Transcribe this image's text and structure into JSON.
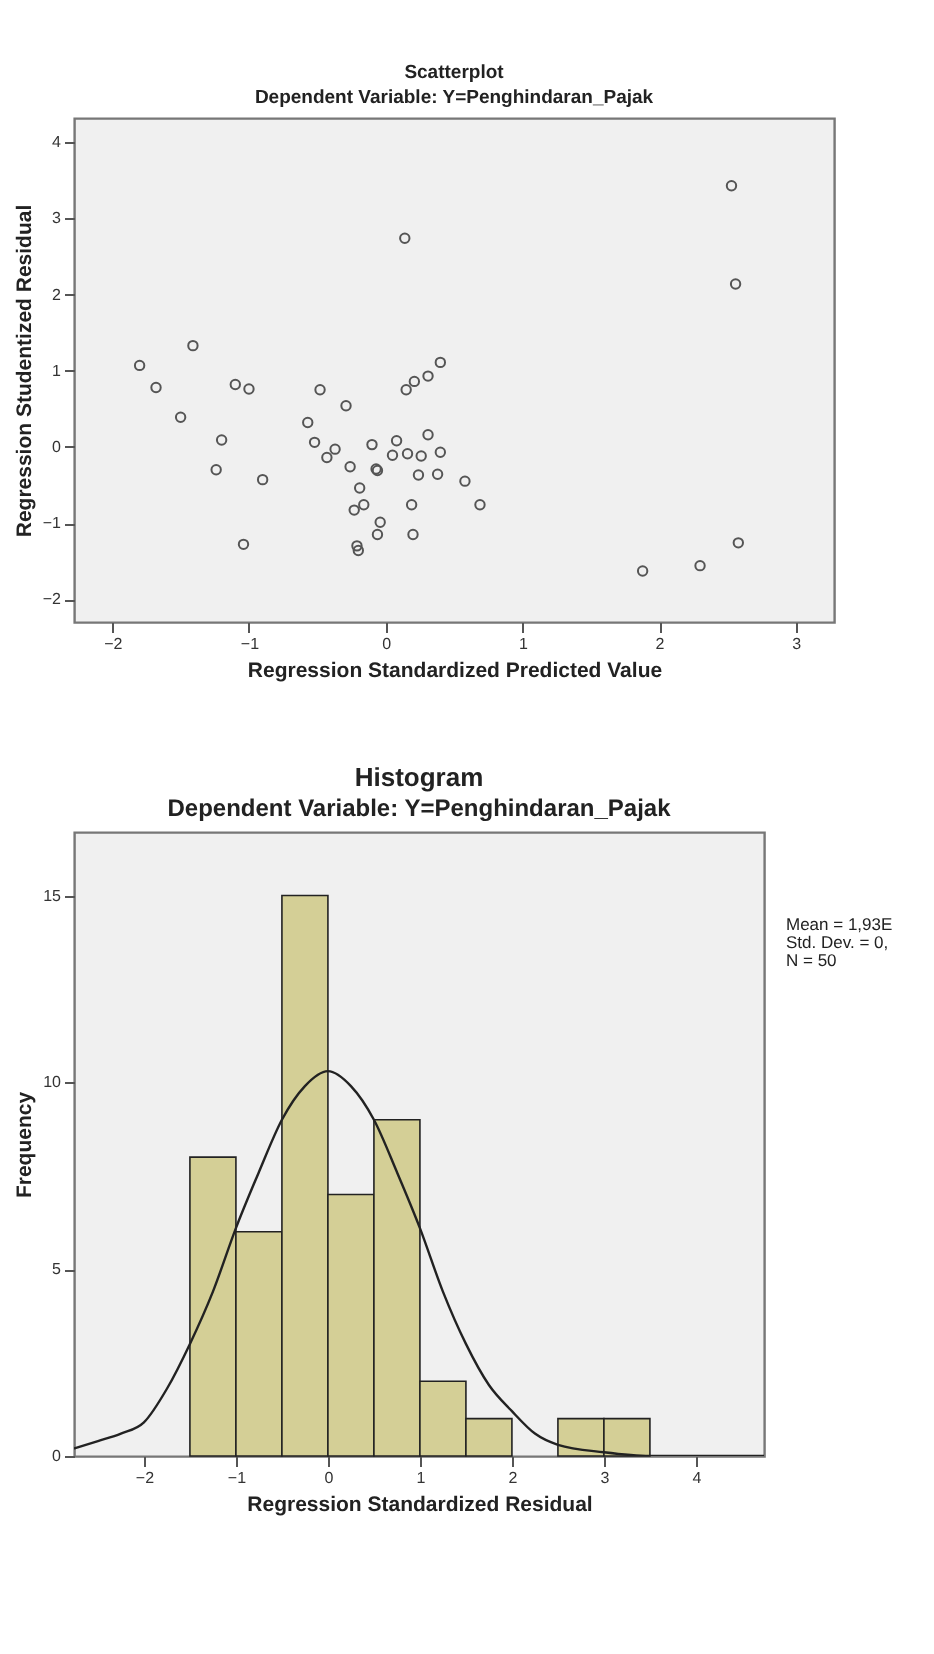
{
  "chart_data": [
    {
      "type": "scatter",
      "title": "Scatterplot",
      "subtitle": "Dependent Variable: Y=Penghindaran_Pajak",
      "xlabel": "Regression Standardized Predicted Value",
      "ylabel": "Regression Studentized Residual",
      "color": "#555555",
      "marker": "circle",
      "x": [
        2.53,
        0.14,
        2.56,
        -1.41,
        -1.8,
        0.4,
        -1.68,
        -1.1,
        -1.0,
        -0.48,
        0.15,
        0.21,
        0.31,
        -0.29,
        -1.5,
        -0.57,
        -1.2,
        -0.52,
        -0.1,
        0.08,
        0.31,
        -0.37,
        -0.43,
        0.05,
        0.16,
        0.26,
        0.4,
        -1.24,
        -0.26,
        -0.07,
        -0.06,
        -0.9,
        0.24,
        0.38,
        0.58,
        -0.19,
        -0.16,
        -0.23,
        0.19,
        0.69,
        -0.04,
        -0.06,
        0.2,
        -1.04,
        -0.21,
        -0.2,
        1.88,
        2.3,
        2.58
      ],
      "values": [
        3.43,
        2.74,
        2.14,
        1.33,
        1.07,
        1.11,
        0.78,
        0.82,
        0.76,
        0.75,
        0.75,
        0.86,
        0.93,
        0.54,
        0.39,
        0.32,
        0.09,
        0.06,
        0.03,
        0.08,
        0.16,
        -0.03,
        -0.14,
        -0.11,
        -0.09,
        -0.12,
        -0.07,
        -0.3,
        -0.26,
        -0.29,
        -0.31,
        -0.43,
        -0.37,
        -0.36,
        -0.45,
        -0.54,
        -0.76,
        -0.83,
        -0.76,
        -0.76,
        -0.99,
        -1.15,
        -1.15,
        -1.28,
        -1.3,
        -1.36,
        -1.63,
        -1.56,
        -1.26
      ],
      "xlim": [
        -2.28,
        3.28
      ],
      "ylim": [
        -2.3,
        4.32
      ],
      "xticks": [
        -2,
        -1,
        0,
        1,
        2,
        3
      ],
      "yticks": [
        -2,
        -1,
        0,
        1,
        2,
        3,
        4
      ]
    },
    {
      "type": "histogram",
      "title": "Histogram",
      "subtitle": "Dependent Variable: Y=Penghindaran_Pajak",
      "xlabel": "Regression Standardized Residual",
      "ylabel": "Frequency",
      "bins": [
        -1.5,
        -1,
        -0.5,
        0,
        0.5,
        1,
        1.5,
        2,
        2.5,
        3,
        3.5
      ],
      "series": [
        {
          "type": "histogram",
          "color": "#d4cf96",
          "values": [
            8,
            6,
            15,
            7,
            9,
            2,
            1,
            0,
            1,
            1
          ]
        },
        {
          "type": "line",
          "color": "#222222",
          "x": [
            -2.76,
            -2.5,
            -2.25,
            -2,
            -1.75,
            -1.5,
            -1.25,
            -1,
            -0.75,
            -0.5,
            -0.25,
            0,
            0.25,
            0.5,
            0.75,
            1,
            1.25,
            1.5,
            1.75,
            2,
            2.25,
            2.5,
            3,
            3.5,
            4,
            4.74
          ],
          "values": [
            0.2,
            0.4,
            0.6,
            0.9,
            1.8,
            3.0,
            4.4,
            6.1,
            7.6,
            9.0,
            9.9,
            10.3,
            9.9,
            9.0,
            7.6,
            6.1,
            4.4,
            3.0,
            1.9,
            1.2,
            0.6,
            0.3,
            0.1,
            0,
            0,
            0
          ]
        }
      ],
      "xlim": [
        -2.76,
        4.74
      ],
      "ylim": [
        0,
        16.7
      ],
      "xticks": [
        -2,
        -1,
        0,
        1,
        2,
        3,
        4
      ],
      "yticks": [
        0,
        5,
        10,
        15
      ],
      "annotations": [
        "Mean = 1,93E",
        "Std. Dev. = 0,",
        "N = 50"
      ]
    }
  ]
}
